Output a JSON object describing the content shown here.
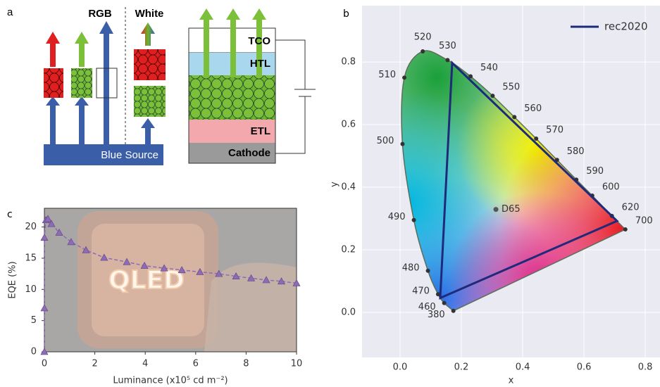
{
  "diagram": {
    "label": "a",
    "rgb": "RGB",
    "white": "White",
    "source": "Blue Source",
    "layers": [
      "TCO",
      "HTL",
      "ETL",
      "Cathode"
    ]
  },
  "chart_data": [
    {
      "type": "chromaticity",
      "label": "b",
      "xlabel": "x",
      "ylabel": "y",
      "xlim": [
        -0.124,
        0.848
      ],
      "ylim": [
        -0.144,
        0.98
      ],
      "xticks": [
        {
          "value": 0,
          "label": "0.0"
        },
        0.2,
        0.4,
        0.6,
        0.8
      ],
      "yticks": [
        {
          "value": 0,
          "label": "0.0"
        },
        0.2,
        0.4,
        0.6,
        0.8
      ],
      "grid": true,
      "legend": "upper right",
      "locus": {
        "labels": [
          "380",
          "460",
          "470",
          "480",
          "490",
          "500",
          "510",
          "520",
          "530",
          "540",
          "550",
          "560",
          "570",
          "580",
          "590",
          "600",
          "620",
          "700"
        ],
        "x": [
          0.174,
          0.144,
          0.124,
          0.091,
          0.045,
          0.008,
          0.014,
          0.074,
          0.155,
          0.23,
          0.302,
          0.373,
          0.444,
          0.512,
          0.575,
          0.627,
          0.691,
          0.735
        ],
        "y": [
          0.005,
          0.03,
          0.058,
          0.133,
          0.295,
          0.538,
          0.75,
          0.834,
          0.806,
          0.754,
          0.692,
          0.624,
          0.555,
          0.487,
          0.424,
          0.373,
          0.308,
          0.265
        ]
      },
      "white_point": {
        "label": "D65",
        "x": 0.3127,
        "y": 0.329
      },
      "series": [
        {
          "name": "rec2020",
          "color": "#1f2a7a",
          "x": [
            0.708,
            0.17,
            0.131
          ],
          "y": [
            0.292,
            0.797,
            0.046
          ]
        }
      ]
    },
    {
      "type": "line",
      "label": "c",
      "xlabel": "Luminance (x10⁵ cd m⁻²)",
      "ylabel": "EQE (%)",
      "xlim": [
        0,
        10
      ],
      "ylim": [
        0,
        23
      ],
      "xticks": [
        0,
        2,
        4,
        6,
        8,
        10
      ],
      "yticks": [
        0,
        5,
        10,
        15,
        20
      ],
      "inset_text": "QLED",
      "series": [
        {
          "color": "#8e6bb5",
          "x": [
            0,
            0,
            0,
            0.06,
            0.14,
            0.28,
            0.59,
            1.06,
            1.65,
            2.37,
            3.27,
            3.97,
            4.75,
            5.45,
            6.17,
            6.92,
            7.6,
            8.2,
            8.8,
            9.4,
            10
          ],
          "values": [
            0,
            7,
            18.3,
            21.1,
            21.3,
            20.5,
            19.1,
            17.6,
            16.3,
            15.1,
            14.4,
            13.8,
            13.4,
            13.1,
            12.8,
            12.5,
            12.1,
            11.8,
            11.5,
            11.3,
            11.0
          ]
        }
      ]
    }
  ]
}
